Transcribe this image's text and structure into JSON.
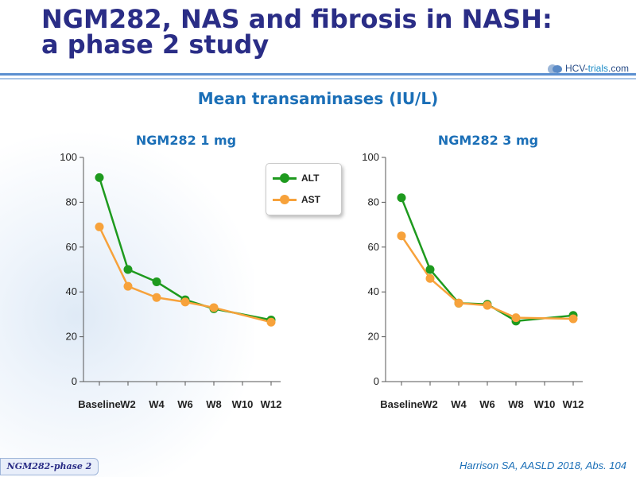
{
  "header": {
    "title_line1": "NGM282, NAS and fibrosis in NASH:",
    "title_line2": "a phase 2 study",
    "logo_text_main": "HCV-",
    "logo_text_accent": "trials",
    "logo_text_suffix": ".com"
  },
  "subtitle": "Mean transaminases (IU/L)",
  "legend": {
    "alt": "ALT",
    "ast": "AST"
  },
  "colors": {
    "alt": "#1e9a1e",
    "ast": "#f7a23b",
    "title": "#2a2d86",
    "subtitle": "#1b6fb7"
  },
  "footer": {
    "tag": "NGM282-phase 2",
    "citation": "Harrison SA, AASLD 2018, Abs. 104"
  },
  "chart_data": [
    {
      "type": "line",
      "title": "NGM282 1 mg",
      "categories": [
        "Baseline",
        "W2",
        "W4",
        "W6",
        "W8",
        "W10",
        "W12"
      ],
      "yticks": [
        "0",
        "20",
        "40",
        "60",
        "80",
        "100"
      ],
      "ylim": [
        0,
        100
      ],
      "series": [
        {
          "name": "ALT",
          "color": "#1e9a1e",
          "values": [
            91,
            50,
            44.5,
            36.5,
            32.5,
            null,
            27.5
          ]
        },
        {
          "name": "AST",
          "color": "#f7a23b",
          "values": [
            69,
            42.5,
            37.5,
            35.5,
            33,
            null,
            26.5
          ]
        }
      ],
      "grid": false,
      "legend": "top-right"
    },
    {
      "type": "line",
      "title": "NGM282 3 mg",
      "categories": [
        "Baseline",
        "W2",
        "W4",
        "W6",
        "W8",
        "W10",
        "W12"
      ],
      "yticks": [
        "0",
        "20",
        "40",
        "60",
        "80",
        "100"
      ],
      "ylim": [
        0,
        100
      ],
      "series": [
        {
          "name": "ALT",
          "color": "#1e9a1e",
          "values": [
            82,
            50,
            35,
            34.5,
            27,
            null,
            29.5
          ]
        },
        {
          "name": "AST",
          "color": "#f7a23b",
          "values": [
            65,
            46,
            35,
            34,
            28.5,
            null,
            28
          ]
        }
      ],
      "grid": false
    }
  ]
}
